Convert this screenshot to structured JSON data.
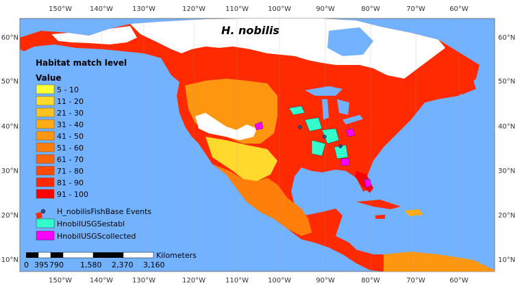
{
  "title": "H. nobilis",
  "legend": {
    "heading": "Habitat match level",
    "subheading": "Value",
    "classes": [
      {
        "label": "5 - 10",
        "color": "#ffff33"
      },
      {
        "label": "11 - 20",
        "color": "#ffd92b"
      },
      {
        "label": "21 - 30",
        "color": "#ffc21f"
      },
      {
        "label": "31 - 40",
        "color": "#ffab14"
      },
      {
        "label": "41 - 50",
        "color": "#ff960f"
      },
      {
        "label": "51 - 60",
        "color": "#ff7f0a"
      },
      {
        "label": "61 - 70",
        "color": "#ff6405"
      },
      {
        "label": "71 - 80",
        "color": "#ff4a00"
      },
      {
        "label": "81 - 90",
        "color": "#ff2a00"
      },
      {
        "label": "91 - 100",
        "color": "#ff0000"
      }
    ],
    "points_label": "H_nobilisFishBase Events",
    "points_color": "#3b4a8f",
    "established_label": "HnobilUSGSestabl",
    "established_color": "#33ffcc",
    "collected_label": "HnobilUSGScollected",
    "collected_color": "#ff00ff"
  },
  "scalebar": {
    "unit": "Kilometers",
    "labels": [
      "0",
      "395",
      "790",
      "1,580",
      "2,370",
      "3,160"
    ]
  },
  "longitude_labels": [
    "150°W",
    "140°W",
    "130°W",
    "120°W",
    "110°W",
    "100°W",
    "90°W",
    "80°W",
    "70°W",
    "60°W"
  ],
  "latitude_labels": [
    "60°N",
    "50°N",
    "40°N",
    "30°N",
    "20°N",
    "10°N"
  ],
  "colors": {
    "ocean": "#73b2ff",
    "land_unsuitable": "#ffffff",
    "frame": "#777777"
  }
}
